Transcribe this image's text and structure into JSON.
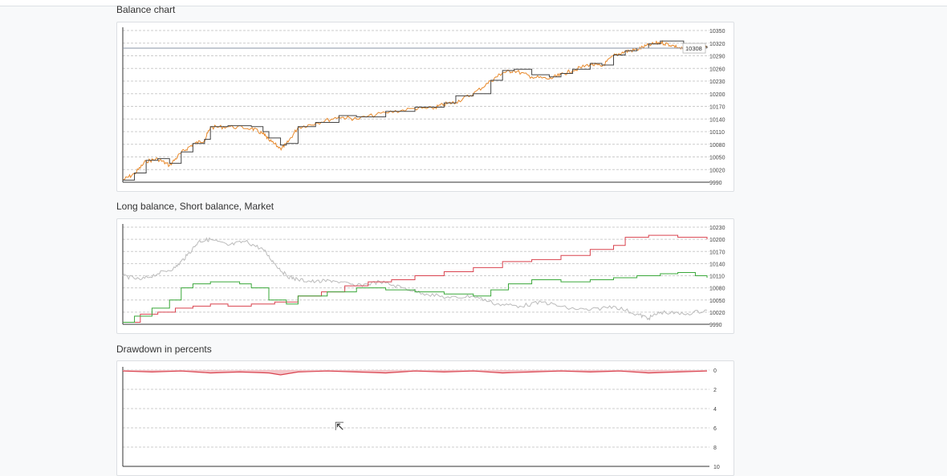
{
  "titles": {
    "balance": "Balance chart",
    "long_short": "Long balance, Short balance, Market",
    "drawdown": "Drawdown in percents"
  },
  "chart_data": [
    {
      "type": "line",
      "title": "Balance chart",
      "y_ticks": [
        9990,
        10020,
        10050,
        10080,
        10110,
        10140,
        10170,
        10200,
        10230,
        10260,
        10290,
        10320,
        10350
      ],
      "ylim": [
        9990,
        10350
      ],
      "xlim": [
        0,
        100
      ],
      "grid": true,
      "current_value_label": "10308",
      "current_value": 10308,
      "series": [
        {
          "color": "#e8892b",
          "style": "noisy",
          "x": [
            0,
            2,
            4,
            6,
            8,
            10,
            12,
            14,
            15,
            18,
            22,
            24,
            25,
            27,
            28,
            30,
            33,
            37,
            40,
            45,
            50,
            53,
            55,
            57,
            60,
            63,
            65,
            67,
            70,
            73,
            75,
            77,
            80,
            82,
            84,
            86,
            88,
            90,
            92,
            94,
            96,
            98,
            100
          ],
          "y": [
            9995,
            10010,
            10040,
            10045,
            10030,
            10060,
            10080,
            10090,
            10120,
            10122,
            10118,
            10105,
            10090,
            10070,
            10080,
            10120,
            10130,
            10145,
            10140,
            10155,
            10165,
            10165,
            10175,
            10180,
            10200,
            10230,
            10250,
            10255,
            10240,
            10235,
            10245,
            10255,
            10270,
            10265,
            10290,
            10300,
            10305,
            10315,
            10322,
            10315,
            10305,
            10310,
            10308
          ]
        },
        {
          "color": "#444444",
          "style": "step",
          "x": [
            0,
            2,
            4,
            6,
            8,
            10,
            12,
            14,
            15,
            18,
            22,
            24,
            25,
            27,
            28,
            30,
            33,
            37,
            40,
            45,
            50,
            53,
            55,
            57,
            60,
            63,
            65,
            67,
            70,
            73,
            75,
            77,
            80,
            82,
            84,
            86,
            88,
            90,
            92,
            94,
            96,
            98,
            100
          ],
          "y": [
            9995,
            10012,
            10042,
            10046,
            10035,
            10062,
            10082,
            10092,
            10122,
            10124,
            10122,
            10110,
            10095,
            10078,
            10082,
            10122,
            10132,
            10148,
            10145,
            10158,
            10168,
            10168,
            10178,
            10195,
            10200,
            10232,
            10255,
            10258,
            10245,
            10240,
            10248,
            10258,
            10272,
            10268,
            10292,
            10302,
            10308,
            10318,
            10325,
            10325,
            10310,
            10312,
            10308
          ]
        }
      ]
    },
    {
      "type": "line",
      "title": "Long balance, Short balance, Market",
      "y_ticks": [
        9990,
        10020,
        10050,
        10080,
        10110,
        10140,
        10170,
        10200,
        10230
      ],
      "ylim": [
        9990,
        10230
      ],
      "xlim": [
        0,
        100
      ],
      "grid": true,
      "series": [
        {
          "color": "#bbbbbb",
          "style": "noisy",
          "x": [
            0,
            3,
            6,
            9,
            11,
            13,
            15,
            18,
            21,
            24,
            26,
            28,
            30,
            33,
            36,
            40,
            44,
            48,
            52,
            56,
            60,
            64,
            68,
            72,
            76,
            80,
            84,
            88,
            90,
            92,
            96,
            100
          ],
          "y": [
            10110,
            10100,
            10115,
            10130,
            10160,
            10195,
            10200,
            10185,
            10195,
            10175,
            10140,
            10110,
            10100,
            10095,
            10098,
            10085,
            10095,
            10080,
            10065,
            10055,
            10060,
            10040,
            10035,
            10045,
            10030,
            10025,
            10035,
            10015,
            10005,
            10020,
            10015,
            10025
          ]
        },
        {
          "color": "#d9434f",
          "style": "step",
          "x": [
            0,
            3,
            6,
            9,
            12,
            15,
            18,
            22,
            26,
            30,
            34,
            38,
            42,
            46,
            50,
            55,
            60,
            65,
            70,
            75,
            80,
            84,
            86,
            90,
            95,
            100
          ],
          "y": [
            9995,
            10015,
            10020,
            10030,
            10035,
            10040,
            10035,
            10040,
            10045,
            10060,
            10070,
            10085,
            10095,
            10100,
            10110,
            10120,
            10130,
            10145,
            10150,
            10160,
            10175,
            10185,
            10205,
            10210,
            10205,
            10200
          ]
        },
        {
          "color": "#3aa83a",
          "style": "step",
          "x": [
            0,
            2,
            5,
            8,
            10,
            12,
            15,
            20,
            22,
            25,
            28,
            30,
            35,
            40,
            45,
            50,
            55,
            60,
            63,
            66,
            70,
            75,
            80,
            84,
            88,
            92,
            95,
            98,
            100
          ],
          "y": [
            9995,
            10010,
            10030,
            10050,
            10080,
            10090,
            10095,
            10090,
            10080,
            10050,
            10040,
            10060,
            10070,
            10080,
            10075,
            10070,
            10065,
            10060,
            10075,
            10090,
            10100,
            10095,
            10100,
            10105,
            10110,
            10115,
            10118,
            10110,
            10105
          ]
        }
      ]
    },
    {
      "type": "area",
      "title": "Drawdown in percents",
      "y_ticks": [
        0,
        2,
        4,
        6,
        8,
        10
      ],
      "ylim": [
        0,
        10
      ],
      "y_inverted": true,
      "xlim": [
        0,
        100
      ],
      "grid": true,
      "series": [
        {
          "color": "#d9434f",
          "fill": "#f4c6ca",
          "x": [
            0,
            5,
            10,
            15,
            20,
            25,
            27,
            30,
            35,
            40,
            45,
            50,
            55,
            60,
            65,
            70,
            75,
            80,
            85,
            90,
            95,
            100
          ],
          "y": [
            0.1,
            0.2,
            0.1,
            0.3,
            0.2,
            0.3,
            0.5,
            0.2,
            0.1,
            0.2,
            0.3,
            0.1,
            0.2,
            0.1,
            0.3,
            0.2,
            0.1,
            0.2,
            0.1,
            0.3,
            0.2,
            0.1
          ]
        }
      ]
    }
  ]
}
